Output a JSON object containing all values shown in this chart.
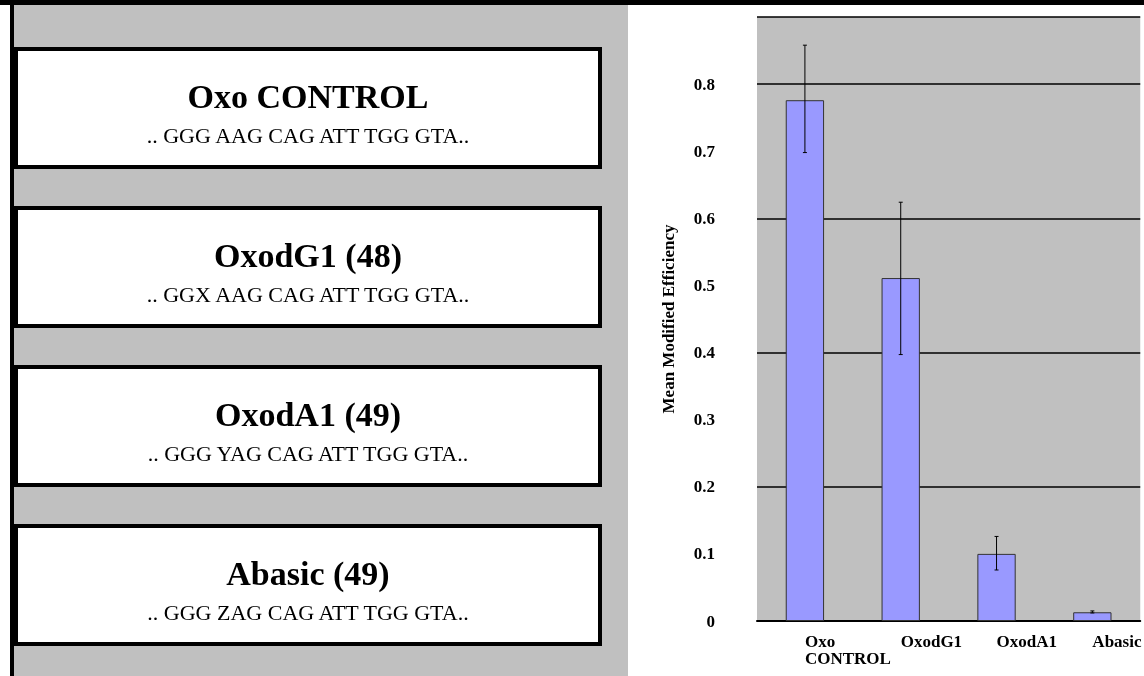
{
  "chart_data": [
    {
      "type": "other",
      "annotations": [
        "Oxo CONTROL",
        ".. GGG AAG CAG ATT TGG GTA..",
        "OxodG1 (48)",
        ".. GGX AAG CAG ATT TGG GTA..",
        "OxodA1 (49)",
        ".. GGG YAG CAG ATT TGG GTA..",
        "Abasic (49)",
        ".. GGG ZAG CAG ATT TGG GTA.."
      ]
    },
    {
      "type": "bar",
      "ylabel": "Mean Modified Efficiency",
      "categories": [
        "Oxo CONTROL",
        "OxodG1",
        "OxodA1",
        "Abasic"
      ],
      "values": [
        0.776,
        0.511,
        0.1,
        0.013
      ],
      "color": "#9999ff",
      "errors": [
        [
          0.698,
          0.858
        ],
        [
          0.397,
          0.624
        ],
        [
          0.076,
          0.126
        ],
        [
          0.012,
          0.015
        ]
      ],
      "ylim": [
        0,
        0.9
      ],
      "yticks": [
        0,
        0.1,
        0.2,
        0.3,
        0.4,
        0.5,
        0.6,
        0.7,
        0.8
      ],
      "grid": "y"
    }
  ]
}
